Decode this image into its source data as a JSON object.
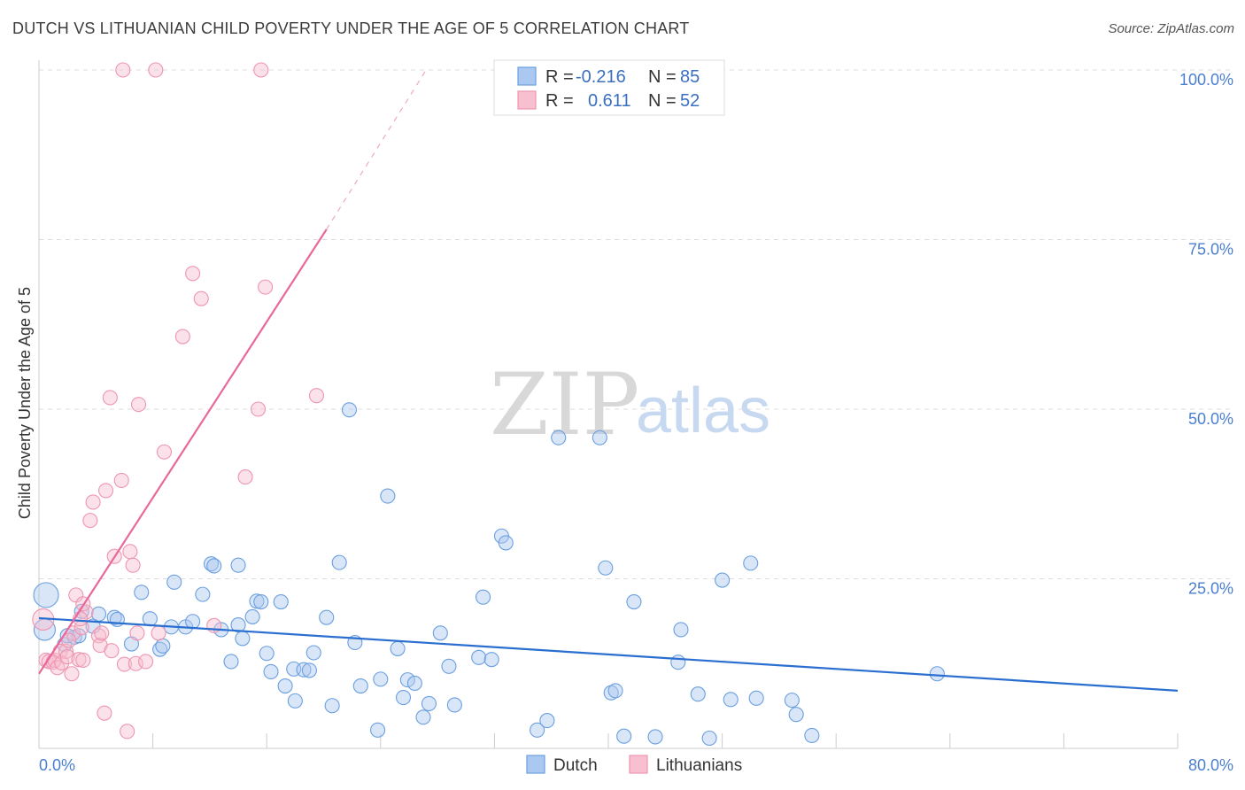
{
  "title": "DUTCH VS LITHUANIAN CHILD POVERTY UNDER THE AGE OF 5 CORRELATION CHART",
  "source": "Source: ZipAtlas.com",
  "watermark": {
    "zip": "ZIP",
    "atlas": "atlas"
  },
  "legend_box": {
    "rows": [
      {
        "r_label": "R =",
        "r_value": "-0.216",
        "n_label": "N =",
        "n_value": "85",
        "color": "#aac8f0"
      },
      {
        "r_label": "R =",
        "r_value": "0.611",
        "n_label": "N =",
        "n_value": "52",
        "color": "#f7bfd0"
      }
    ]
  },
  "bottom_legend": [
    {
      "label": "Dutch",
      "color": "#aac8f0"
    },
    {
      "label": "Lithuanians",
      "color": "#f7bfd0"
    }
  ],
  "chart_data": {
    "type": "scatter",
    "title": "DUTCH VS LITHUANIAN CHILD POVERTY UNDER THE AGE OF 5 CORRELATION CHART",
    "xlabel": "",
    "ylabel": "Child Poverty Under the Age of 5",
    "xlim": [
      0,
      80
    ],
    "ylim": [
      0,
      100
    ],
    "x_tick_labels": [
      "0.0%",
      "80.0%"
    ],
    "y_tick_labels": [
      "25.0%",
      "50.0%",
      "75.0%",
      "100.0%"
    ],
    "y_ticks": [
      25,
      50,
      75,
      100
    ],
    "grid": true,
    "legend_position": "top-center",
    "series": [
      {
        "name": "Dutch",
        "color": "#6a9fe0",
        "fill": "#aac8f0",
        "trend": {
          "x": [
            0,
            80
          ],
          "y": [
            19.2,
            8.5
          ],
          "color": "#2a6fd0"
        },
        "points": [
          [
            0.5,
            22.6
          ],
          [
            0.4,
            17.5
          ],
          [
            1.8,
            15.3
          ],
          [
            2.0,
            16.6
          ],
          [
            2.5,
            16.4
          ],
          [
            2.8,
            16.6
          ],
          [
            3.0,
            20.2
          ],
          [
            3.8,
            18.0
          ],
          [
            4.2,
            19.8
          ],
          [
            5.3,
            19.3
          ],
          [
            5.5,
            19.0
          ],
          [
            6.5,
            15.4
          ],
          [
            7.2,
            23.0
          ],
          [
            7.8,
            19.1
          ],
          [
            8.5,
            14.6
          ],
          [
            8.7,
            15.1
          ],
          [
            9.5,
            24.5
          ],
          [
            9.3,
            17.9
          ],
          [
            10.3,
            17.9
          ],
          [
            10.8,
            18.7
          ],
          [
            11.5,
            22.7
          ],
          [
            12.1,
            27.2
          ],
          [
            12.3,
            26.9
          ],
          [
            12.8,
            17.5
          ],
          [
            13.5,
            12.8
          ],
          [
            14.0,
            18.2
          ],
          [
            14.3,
            16.2
          ],
          [
            15.0,
            19.4
          ],
          [
            15.3,
            21.7
          ],
          [
            15.6,
            21.6
          ],
          [
            16.0,
            14.0
          ],
          [
            16.3,
            11.3
          ],
          [
            17.0,
            21.6
          ],
          [
            17.3,
            9.2
          ],
          [
            17.9,
            11.7
          ],
          [
            18.0,
            7.0
          ],
          [
            18.6,
            11.6
          ],
          [
            19.0,
            11.5
          ],
          [
            19.3,
            14.1
          ],
          [
            20.2,
            19.3
          ],
          [
            20.6,
            6.3
          ],
          [
            21.1,
            27.4
          ],
          [
            21.8,
            49.9
          ],
          [
            22.2,
            15.6
          ],
          [
            22.6,
            9.2
          ],
          [
            23.8,
            2.7
          ],
          [
            24.0,
            10.2
          ],
          [
            24.5,
            37.2
          ],
          [
            25.2,
            14.7
          ],
          [
            25.6,
            7.5
          ],
          [
            25.9,
            10.1
          ],
          [
            26.4,
            9.6
          ],
          [
            27.0,
            4.6
          ],
          [
            27.4,
            6.6
          ],
          [
            28.2,
            17.0
          ],
          [
            28.8,
            12.1
          ],
          [
            29.2,
            6.4
          ],
          [
            30.9,
            13.4
          ],
          [
            31.2,
            22.3
          ],
          [
            31.8,
            13.1
          ],
          [
            32.5,
            31.3
          ],
          [
            32.8,
            30.3
          ],
          [
            35.0,
            2.7
          ],
          [
            35.7,
            4.1
          ],
          [
            36.5,
            45.8
          ],
          [
            39.4,
            45.8
          ],
          [
            39.8,
            26.6
          ],
          [
            40.2,
            8.2
          ],
          [
            40.5,
            8.5
          ],
          [
            41.1,
            1.8
          ],
          [
            41.8,
            21.6
          ],
          [
            43.3,
            1.7
          ],
          [
            44.9,
            12.7
          ],
          [
            45.1,
            17.5
          ],
          [
            46.3,
            8.0
          ],
          [
            47.1,
            1.5
          ],
          [
            48.0,
            24.8
          ],
          [
            48.6,
            7.2
          ],
          [
            50.0,
            27.3
          ],
          [
            50.4,
            7.4
          ],
          [
            52.9,
            7.1
          ],
          [
            53.2,
            5.0
          ],
          [
            54.3,
            1.9
          ],
          [
            63.1,
            11.0
          ],
          [
            14.0,
            27.0
          ]
        ]
      },
      {
        "name": "Lithuanians",
        "color": "#ee95b0",
        "fill": "#f7bfd0",
        "trend": {
          "x": [
            0,
            20.2
          ],
          "y": [
            11.0,
            76.5
          ],
          "color": "#e8689a",
          "dashed_to": {
            "x": 27.2,
            "y": 100
          }
        },
        "points": [
          [
            0.3,
            19.0
          ],
          [
            0.5,
            13.0
          ],
          [
            0.7,
            12.8
          ],
          [
            1.0,
            12.7
          ],
          [
            1.1,
            13.0
          ],
          [
            1.3,
            11.9
          ],
          [
            1.5,
            14.3
          ],
          [
            1.6,
            12.6
          ],
          [
            1.9,
            14.3
          ],
          [
            2.0,
            13.5
          ],
          [
            2.3,
            11.0
          ],
          [
            2.4,
            17.0
          ],
          [
            2.6,
            22.6
          ],
          [
            2.8,
            13.1
          ],
          [
            3.0,
            17.8
          ],
          [
            3.1,
            13.0
          ],
          [
            3.3,
            20.1
          ],
          [
            3.6,
            33.6
          ],
          [
            3.8,
            36.3
          ],
          [
            4.2,
            16.6
          ],
          [
            4.3,
            15.2
          ],
          [
            4.6,
            5.2
          ],
          [
            4.7,
            38.0
          ],
          [
            5.0,
            51.7
          ],
          [
            5.1,
            14.4
          ],
          [
            5.3,
            28.3
          ],
          [
            5.8,
            39.5
          ],
          [
            6.0,
            12.4
          ],
          [
            6.2,
            2.5
          ],
          [
            6.4,
            29.0
          ],
          [
            6.6,
            27.0
          ],
          [
            6.8,
            12.5
          ],
          [
            7.0,
            50.7
          ],
          [
            7.5,
            12.8
          ],
          [
            8.4,
            17.0
          ],
          [
            8.8,
            43.7
          ],
          [
            10.1,
            60.7
          ],
          [
            10.8,
            70.0
          ],
          [
            11.4,
            66.3
          ],
          [
            12.3,
            18.1
          ],
          [
            14.5,
            40.0
          ],
          [
            15.4,
            50.0
          ],
          [
            15.9,
            68.0
          ],
          [
            19.5,
            52.0
          ],
          [
            5.9,
            100.0
          ],
          [
            8.2,
            100.0
          ],
          [
            15.6,
            100.0
          ],
          [
            3.1,
            21.3
          ],
          [
            2.9,
            19.1
          ],
          [
            4.4,
            17.0
          ],
          [
            6.9,
            17.0
          ],
          [
            2.1,
            15.9
          ]
        ]
      }
    ]
  }
}
